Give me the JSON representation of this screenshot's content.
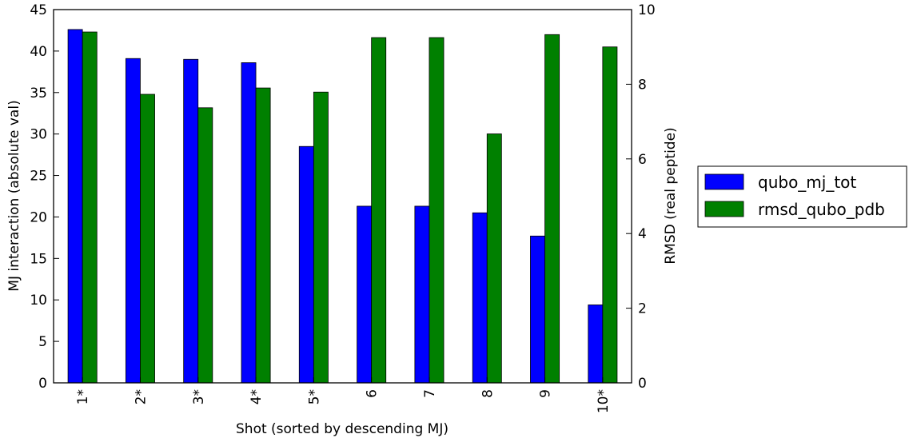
{
  "chart_data": {
    "type": "bar",
    "categories": [
      "1*",
      "2*",
      "3*",
      "4*",
      "5*",
      "6",
      "7",
      "8",
      "9",
      "10*"
    ],
    "xlabel": "Shot (sorted by descending MJ)",
    "y_left": {
      "label": "MJ interaction (absolute val)",
      "ylim": [
        0,
        45
      ],
      "ticks": [
        0,
        5,
        10,
        15,
        20,
        25,
        30,
        35,
        40,
        45
      ]
    },
    "y_right": {
      "label": "RMSD (real peptide)",
      "ylim": [
        0,
        10
      ],
      "ticks": [
        0,
        2,
        4,
        6,
        8,
        10
      ]
    },
    "series": [
      {
        "name": "qubo_mj_tot",
        "axis": "left",
        "color": "#0000ff",
        "values": [
          42.6,
          39.1,
          39.0,
          38.6,
          28.5,
          21.3,
          21.3,
          20.5,
          17.7,
          9.4
        ]
      },
      {
        "name": "rmsd_qubo_pdb",
        "axis": "right",
        "color": "#008000",
        "values": [
          9.4,
          7.73,
          7.37,
          7.9,
          7.79,
          9.25,
          9.25,
          6.67,
          9.33,
          9.0
        ]
      }
    ],
    "legend": {
      "placement": "outside-right"
    },
    "grid": false
  }
}
